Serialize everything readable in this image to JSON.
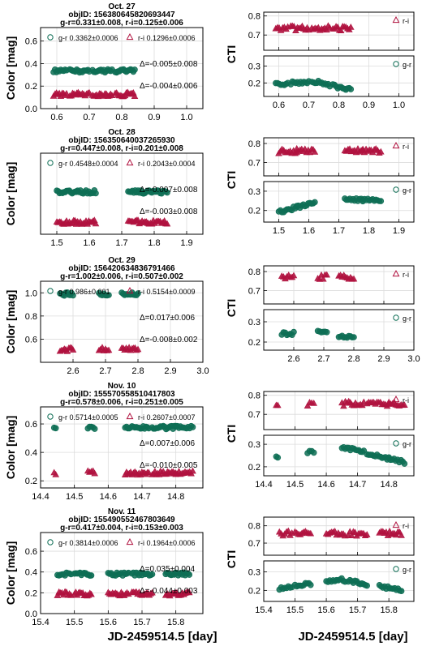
{
  "colors": {
    "gr": "#0e6e55",
    "ri": "#b0123f"
  },
  "labels": {
    "color_axis": "Color [mag]",
    "cti_axis": "CTI",
    "x_axis": "JD-2459514.5 [day]",
    "gr_name": "g-r",
    "ri_name": "r-i"
  },
  "chart_data": [
    {
      "type": "scatter",
      "title": "Oct. 27",
      "objid": "objID: 156380645820693447",
      "summary": "g-r=0.331±0.008, r-i=0.125±0.006",
      "xlim": [
        0.55,
        1.05
      ],
      "xticks": [
        "0.6",
        "0.7",
        "0.8",
        "0.9",
        "1.0"
      ],
      "ylim": [
        0.0,
        0.72
      ],
      "yticks": [
        "0.0",
        "0.2",
        "0.4",
        "0.6"
      ],
      "legend_gr": "g-r 0.3362±0.0006",
      "legend_ri": "r-i 0.1296±0.0006",
      "delta_gr": "Δ=-0.005±0.008",
      "delta_ri": "Δ=-0.004±0.006",
      "segments": [
        [
          0.59,
          0.63
        ],
        [
          0.64,
          0.7
        ],
        [
          0.71,
          0.77
        ],
        [
          0.78,
          0.84
        ]
      ],
      "gr_level": 0.335,
      "ri_level": 0.125,
      "cti_ri": {
        "ylim": [
          0.62,
          0.82
        ],
        "yticks": [
          "0.7",
          "0.8"
        ],
        "level": 0.735,
        "legend": "r-i"
      },
      "cti_gr": {
        "ylim": [
          0.12,
          0.36
        ],
        "yticks": [
          "0.2",
          "0.3"
        ],
        "start": 0.19,
        "mid": 0.21,
        "end": 0.16,
        "legend": "g-r"
      }
    },
    {
      "type": "scatter",
      "title": "Oct. 28",
      "objid": "objID: 156350640037265930",
      "summary": "g-r=0.447±0.008, r-i=0.201±0.008",
      "xlim": [
        1.45,
        1.95
      ],
      "xticks": [
        "1.5",
        "1.6",
        "1.7",
        "1.8",
        "1.9"
      ],
      "ylim": [
        0.1,
        0.78
      ],
      "yticks": [],
      "legend_gr": "g-r 0.4548±0.0004",
      "legend_ri": "r-i 0.2043±0.0004",
      "delta_gr": "Δ=-0.007±0.008",
      "delta_ri": "Δ=-0.003±0.008",
      "segments": [
        [
          1.5,
          1.56
        ],
        [
          1.56,
          1.62
        ],
        [
          1.72,
          1.78
        ],
        [
          1.78,
          1.84
        ]
      ],
      "gr_level": 0.455,
      "ri_level": 0.2,
      "cti_ri": {
        "ylim": [
          0.63,
          0.83
        ],
        "yticks": [
          "0.7",
          "0.8"
        ],
        "level": 0.76,
        "legend": "r-i"
      },
      "cti_gr": {
        "ylim": [
          0.14,
          0.35
        ],
        "yticks": [
          "0.2",
          "0.3"
        ],
        "start": 0.19,
        "mid": 0.265,
        "end": 0.25,
        "legend": "g-r"
      }
    },
    {
      "type": "scatter",
      "title": "Oct. 29",
      "objid": "objID: 156420634836791466",
      "summary": "g-r=1.002±0.006, r-i=0.507±0.002",
      "xlim": [
        2.5,
        3.0
      ],
      "xticks": [
        "2.6",
        "2.7",
        "2.8",
        "2.9",
        "3.0"
      ],
      "ylim": [
        0.4,
        1.1
      ],
      "yticks": [
        "0.6",
        "0.8",
        "1.0"
      ],
      "legend_gr": "g-r 0.986±0.001",
      "legend_ri": "r-i 0.5154±0.0009",
      "delta_gr": "Δ=0.017±0.006",
      "delta_ri": "Δ=-0.008±0.002",
      "segments": [
        [
          2.56,
          2.6
        ],
        [
          2.68,
          2.71
        ],
        [
          2.75,
          2.8
        ]
      ],
      "gr_level": 0.99,
      "ri_level": 0.51,
      "cti_ri": {
        "ylim": [
          0.63,
          0.83
        ],
        "yticks": [
          "0.7",
          "0.8"
        ],
        "level": 0.77,
        "legend": "r-i"
      },
      "cti_gr": {
        "ylim": [
          0.16,
          0.36
        ],
        "yticks": [
          "0.2",
          "0.3"
        ],
        "start": 0.24,
        "mid": 0.25,
        "end": 0.22,
        "legend": "g-r"
      }
    },
    {
      "type": "scatter",
      "title": "Nov. 10",
      "objid": "objID: 155570558510417803",
      "summary": "g-r=0.578±0.006, r-i=0.251±0.005",
      "xlim": [
        14.4,
        14.88
      ],
      "xticks": [
        "14.4",
        "14.5",
        "14.6",
        "14.7",
        "14.8"
      ],
      "ylim": [
        0.15,
        0.72
      ],
      "yticks": [
        "0.2",
        "0.4",
        "0.6"
      ],
      "legend_gr": "g-r 0.5714±0.0005",
      "legend_ri": "r-i 0.2607±0.0007",
      "delta_gr": "Δ=0.007±0.006",
      "delta_ri": "Δ=-0.010±0.005",
      "segments": [
        [
          14.44,
          14.445
        ],
        [
          14.54,
          14.56
        ],
        [
          14.65,
          14.72
        ],
        [
          14.73,
          14.8
        ],
        [
          14.8,
          14.85
        ]
      ],
      "gr_level": 0.575,
      "ri_level": 0.255,
      "cti_ri": {
        "ylim": [
          0.62,
          0.82
        ],
        "yticks": [
          "0.7",
          "0.8"
        ],
        "level": 0.755,
        "legend": "r-i"
      },
      "cti_gr": {
        "ylim": [
          0.16,
          0.34
        ],
        "yticks": [
          "0.2",
          "0.3"
        ],
        "start": 0.24,
        "mid": 0.29,
        "end": 0.22,
        "legend": "g-r"
      }
    },
    {
      "type": "scatter",
      "title": "Nov. 11",
      "objid": "objID: 155490552467803649",
      "summary": "g-r=0.417±0.004, r-i=0.153±0.003",
      "xlim": [
        15.4,
        15.88
      ],
      "xticks": [
        "15.4",
        "15.5",
        "15.6",
        "15.7",
        "15.8"
      ],
      "ylim": [
        0.0,
        0.78
      ],
      "yticks": [
        "0.0",
        "0.2",
        "0.4",
        "0.6"
      ],
      "legend_gr": "g-r 0.3814±0.0006",
      "legend_ri": "r-i 0.1964±0.0006",
      "delta_gr": "Δ=0.035±0.004",
      "delta_ri": "Δ=-0.044±0.003",
      "segments": [
        [
          15.45,
          15.49
        ],
        [
          15.5,
          15.55
        ],
        [
          15.6,
          15.66
        ],
        [
          15.67,
          15.73
        ],
        [
          15.77,
          15.84
        ]
      ],
      "gr_level": 0.38,
      "ri_level": 0.19,
      "cti_ri": {
        "ylim": [
          0.63,
          0.85
        ],
        "yticks": [
          "0.7",
          "0.8"
        ],
        "level": 0.755,
        "legend": "r-i"
      },
      "cti_gr": {
        "ylim": [
          0.14,
          0.36
        ],
        "yticks": [
          "0.2",
          "0.3"
        ],
        "start": 0.21,
        "mid": 0.26,
        "end": 0.2,
        "legend": "g-r"
      }
    }
  ]
}
